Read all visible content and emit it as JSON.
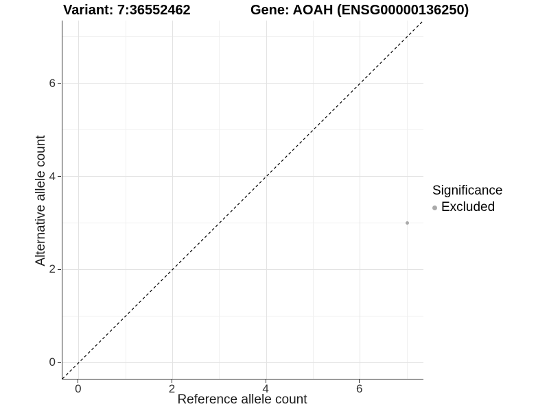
{
  "colors": {
    "background": "#ffffff",
    "axis_line": "#333333",
    "grid_major": "#e3e3e3",
    "grid_minor": "#f0f0f0",
    "tick_text": "#333333",
    "title_text": "#000000",
    "point_excluded": "#aaaaaa",
    "identity_line": "#000000"
  },
  "chart_data": {
    "type": "scatter",
    "title_left": "Variant: 7:36552462",
    "title_right": "Gene: AOAH (ENSG00000136250)",
    "xlabel": "Reference allele count",
    "ylabel": "Alternative allele count",
    "xlim": [
      -0.35,
      7.35
    ],
    "ylim": [
      -0.35,
      7.35
    ],
    "x_ticks": [
      0,
      2,
      4,
      6
    ],
    "y_ticks": [
      0,
      2,
      4,
      6
    ],
    "x_minor_ticks": [
      1,
      3,
      5,
      7
    ],
    "y_minor_ticks": [
      1,
      3,
      5,
      7
    ],
    "grid": "major+minor",
    "identity_line": {
      "style": "dashed",
      "color": "#000000",
      "from": [
        -0.35,
        -0.35
      ],
      "to": [
        7.35,
        7.35
      ]
    },
    "series": [
      {
        "name": "Excluded",
        "color": "#aaaaaa",
        "points": [
          {
            "x": 7,
            "y": 3
          }
        ]
      }
    ],
    "legend": {
      "title": "Significance",
      "position": "right",
      "items": [
        {
          "label": "Excluded",
          "color": "#aaaaaa",
          "marker": "circle"
        }
      ]
    }
  }
}
